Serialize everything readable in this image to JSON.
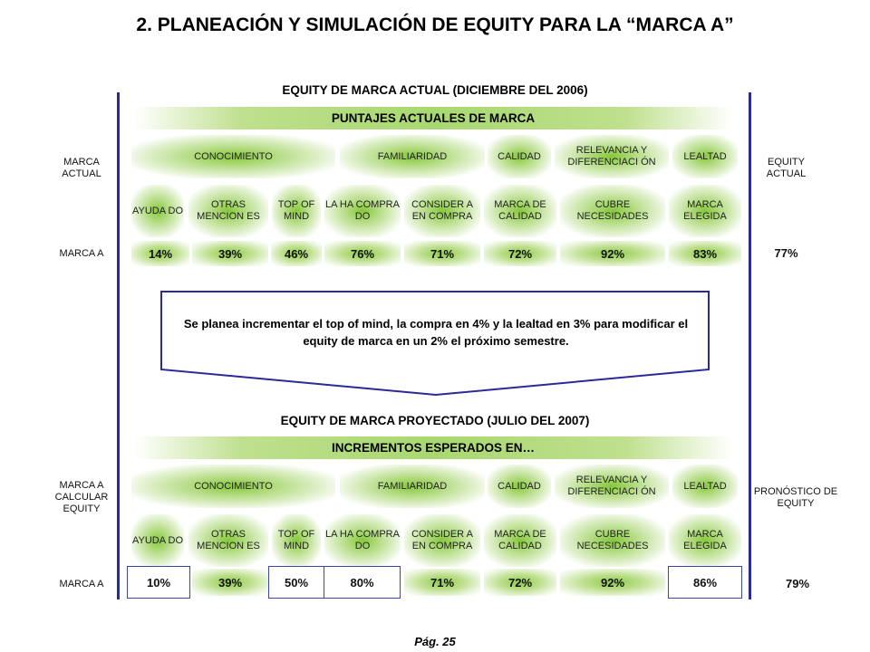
{
  "title": "2. PLANEACIÓN Y SIMULACIÓN DE EQUITY PARA LA “MARCA A”",
  "actual": {
    "subtitle": "EQUITY DE MARCA ACTUAL (DICIEMBRE DEL 2006)",
    "banner": "PUNTAJES ACTUALES DE MARCA",
    "left_label": "MARCA ACTUAL",
    "right_label": "EQUITY ACTUAL",
    "row_label": "MARCA A",
    "groups": [
      "CONOCIMIENTO",
      "FAMILIARIDAD",
      "CALIDAD",
      "RELEVANCIA Y DIFERENCIACI ÓN",
      "LEALTAD"
    ],
    "metrics": [
      "AYUDA DO",
      "OTRAS MENCION ES",
      "TOP OF MIND",
      "LA HA COMPRA DO",
      "CONSIDER A EN COMPRA",
      "MARCA DE CALIDAD",
      "CUBRE NECESIDADES",
      "MARCA ELEGIDA"
    ],
    "values": [
      "14%",
      "39%",
      "46%",
      "76%",
      "71%",
      "72%",
      "92%",
      "83%"
    ],
    "equity": "77%"
  },
  "note": "Se planea incrementar el top of mind, la compra en 4% y la lealtad en 3% para modificar el equity de marca en un 2% el próximo semestre.",
  "projected": {
    "subtitle": "EQUITY DE MARCA PROYECTADO (JULIO DEL 2007)",
    "banner": "INCREMENTOS ESPERADOS EN…",
    "left_label": "MARCA A CALCULAR EQUITY",
    "right_label": "PRONÓSTICO DE EQUITY",
    "row_label": "MARCA A",
    "groups": [
      "CONOCIMIENTO",
      "FAMILIARIDAD",
      "CALIDAD",
      "RELEVANCIA Y DIFERENCIACI ÓN",
      "LEALTAD"
    ],
    "metrics": [
      "AYUDA DO",
      "OTRAS MENCION ES",
      "TOP OF MIND",
      "LA HA COMPRA DO",
      "CONSIDER A EN COMPRA",
      "MARCA DE CALIDAD",
      "CUBRE NECESIDADES",
      "MARCA ELEGIDA"
    ],
    "values": [
      "10%",
      "39%",
      "50%",
      "80%",
      "71%",
      "72%",
      "92%",
      "86%"
    ],
    "equity": "79%"
  },
  "page": "Pág. 25",
  "colors": {
    "green": "#8fca4a",
    "line_blue": "#2a2a9a",
    "box_border": "#3b44a8"
  }
}
